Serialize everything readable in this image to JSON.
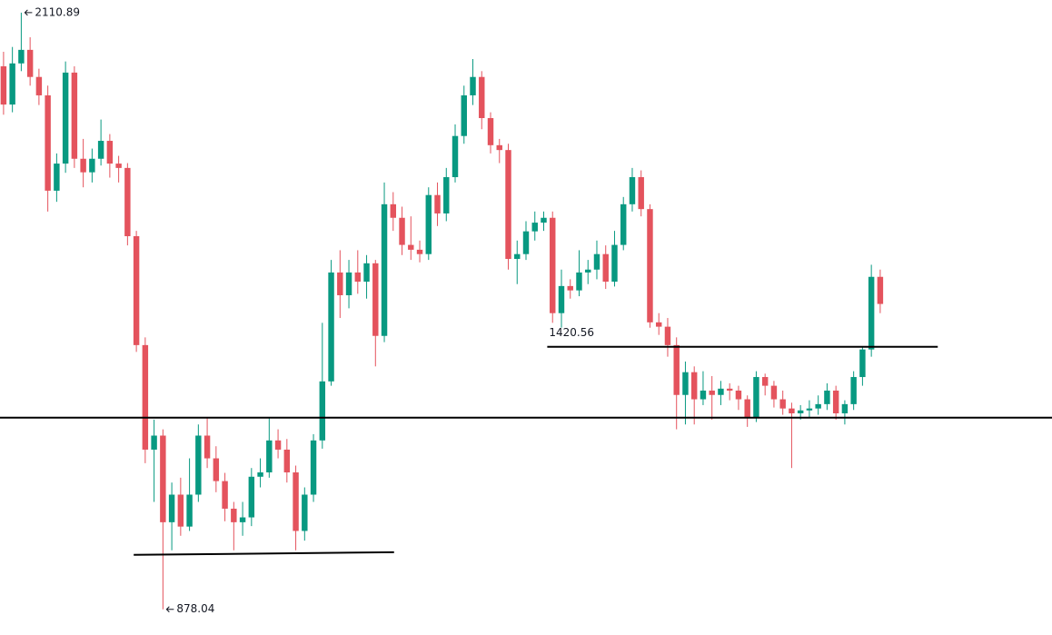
{
  "chart_data": {
    "type": "candlestick",
    "up_color": "#089981",
    "down_color": "#e4535d",
    "xlim": [
      -0.4,
      118.4
    ],
    "ylim": [
      825,
      2137
    ],
    "open": [
      2000,
      1921,
      2006,
      2034,
      1978,
      1940,
      1743,
      1799,
      1987,
      1809,
      1781,
      1809,
      1846,
      1799,
      1790,
      1649,
      1424,
      1208,
      1237,
      1058,
      1115,
      1049,
      1115,
      1237,
      1190,
      1143,
      1086,
      1058,
      1068,
      1152,
      1161,
      1227,
      1208,
      1161,
      1040,
      1115,
      1227,
      1349,
      1574,
      1527,
      1574,
      1555,
      1593,
      1443,
      1715,
      1687,
      1631,
      1621,
      1612,
      1734,
      1696,
      1771,
      1856,
      1940,
      1978,
      1893,
      1837,
      1827,
      1602,
      1612,
      1659,
      1677,
      1687,
      1490,
      1546,
      1537,
      1574,
      1580,
      1612,
      1555,
      1631,
      1715,
      1771,
      1705,
      1471,
      1462,
      1424,
      1321,
      1368,
      1312,
      1330,
      1321,
      1334,
      1330,
      1312,
      1274,
      1358,
      1340,
      1312,
      1293,
      1283,
      1289,
      1293,
      1302,
      1330,
      1283,
      1302,
      1358,
      1415,
      1565
    ],
    "high": [
      2030,
      2040,
      2110.89,
      2060,
      1995,
      1960,
      1820,
      2010,
      2000,
      1850,
      1830,
      1890,
      1860,
      1815,
      1800,
      1660,
      1440,
      1270,
      1250,
      1140,
      1150,
      1190,
      1260,
      1275,
      1215,
      1160,
      1100,
      1100,
      1170,
      1190,
      1275,
      1250,
      1230,
      1175,
      1130,
      1240,
      1470,
      1600,
      1620,
      1600,
      1620,
      1610,
      1600,
      1760,
      1740,
      1710,
      1690,
      1640,
      1750,
      1760,
      1790,
      1880,
      1960,
      2015,
      1990,
      1905,
      1850,
      1840,
      1640,
      1680,
      1700,
      1700,
      1700,
      1580,
      1560,
      1620,
      1600,
      1640,
      1630,
      1660,
      1730,
      1790,
      1785,
      1715,
      1490,
      1480,
      1440,
      1390,
      1380,
      1370,
      1360,
      1350,
      1345,
      1340,
      1320,
      1370,
      1365,
      1350,
      1330,
      1305,
      1300,
      1310,
      1320,
      1345,
      1340,
      1310,
      1370,
      1420,
      1590,
      1580
    ],
    "low": [
      1900,
      1905,
      1990,
      1960,
      1920,
      1700,
      1720,
      1780,
      1790,
      1750,
      1760,
      1795,
      1770,
      1760,
      1630,
      1410,
      1180,
      1100,
      878.04,
      1000,
      1030,
      1040,
      1100,
      1170,
      1120,
      1060,
      1000,
      1030,
      1050,
      1130,
      1150,
      1190,
      1140,
      1000,
      1020,
      1100,
      1210,
      1340,
      1480,
      1500,
      1530,
      1520,
      1380,
      1430,
      1660,
      1610,
      1600,
      1595,
      1600,
      1670,
      1680,
      1760,
      1840,
      1920,
      1870,
      1820,
      1800,
      1580,
      1550,
      1600,
      1640,
      1660,
      1470,
      1460,
      1520,
      1525,
      1550,
      1560,
      1540,
      1545,
      1620,
      1700,
      1690,
      1460,
      1445,
      1400,
      1250,
      1260,
      1260,
      1300,
      1270,
      1300,
      1310,
      1290,
      1255,
      1265,
      1320,
      1295,
      1280,
      1170,
      1270,
      1275,
      1280,
      1290,
      1270,
      1260,
      1290,
      1340,
      1400,
      1490
    ],
    "close": [
      1921,
      2006,
      2034,
      1978,
      1940,
      1743,
      1799,
      1987,
      1809,
      1781,
      1809,
      1846,
      1799,
      1790,
      1649,
      1424,
      1208,
      1237,
      1058,
      1115,
      1049,
      1115,
      1237,
      1190,
      1143,
      1086,
      1058,
      1068,
      1152,
      1161,
      1227,
      1208,
      1161,
      1040,
      1115,
      1227,
      1349,
      1574,
      1527,
      1574,
      1555,
      1593,
      1443,
      1715,
      1687,
      1631,
      1621,
      1612,
      1734,
      1696,
      1771,
      1856,
      1940,
      1978,
      1893,
      1837,
      1827,
      1602,
      1612,
      1659,
      1677,
      1687,
      1490,
      1546,
      1537,
      1574,
      1580,
      1612,
      1555,
      1631,
      1715,
      1771,
      1705,
      1471,
      1462,
      1424,
      1321,
      1368,
      1312,
      1330,
      1321,
      1334,
      1330,
      1312,
      1274,
      1358,
      1340,
      1312,
      1293,
      1283,
      1289,
      1293,
      1302,
      1330,
      1283,
      1302,
      1358,
      1415,
      1565,
      1509
    ],
    "max_marker_index": 2,
    "min_marker_index": 18,
    "lines": [
      {
        "x": [
          -0.4,
          118.4
        ],
        "y": [
          1274,
          1274
        ]
      },
      {
        "x": [
          61.4,
          105.5
        ],
        "y": [
          1420.56,
          1420.56
        ],
        "labeled": true
      },
      {
        "x": [
          14.7,
          44.1
        ],
        "y": [
          990.6,
          996
        ]
      }
    ]
  }
}
